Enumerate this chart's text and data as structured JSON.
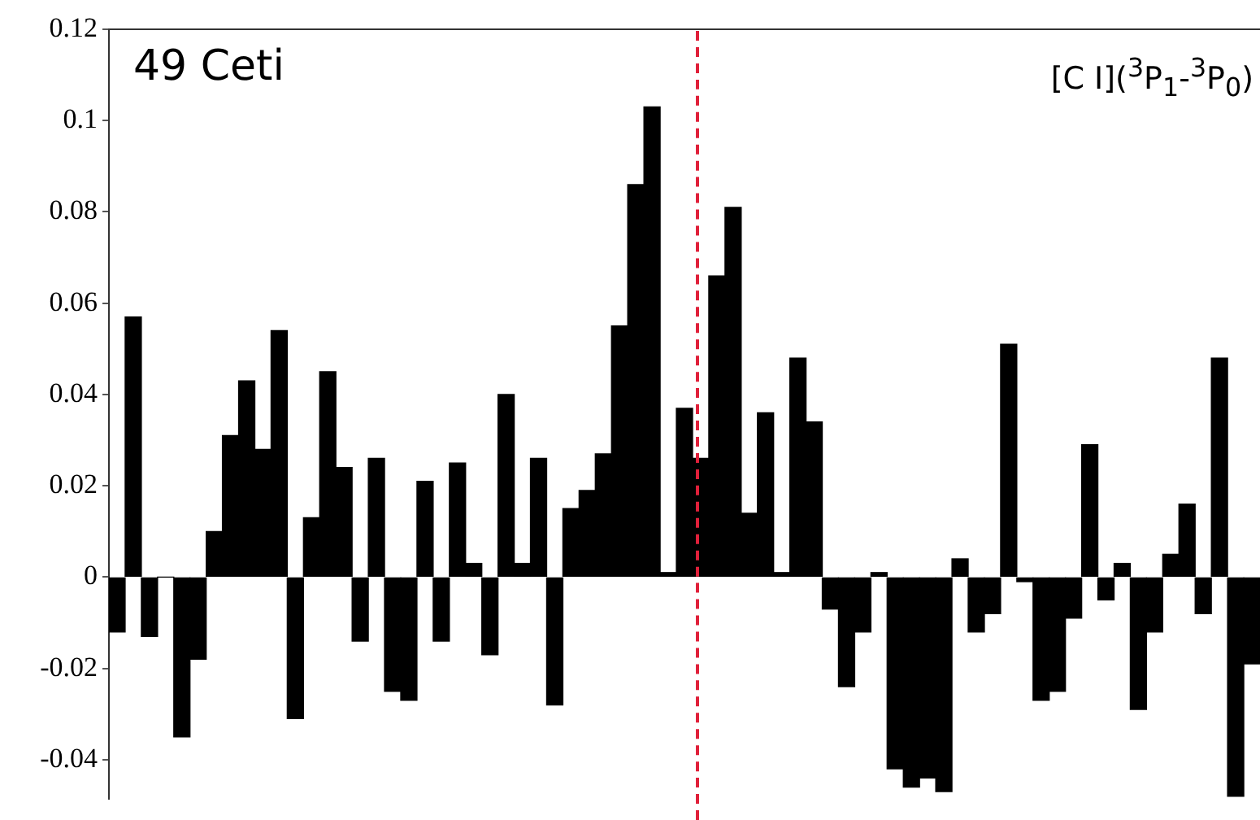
{
  "chart_data": {
    "type": "bar",
    "categories": [
      null,
      null,
      null,
      null,
      null,
      null,
      null,
      null,
      null,
      null,
      null,
      null,
      null,
      null,
      null,
      null,
      null,
      null,
      null,
      null,
      null,
      null,
      null,
      null,
      null,
      null,
      null,
      null,
      null,
      null,
      null,
      null,
      null,
      null,
      null,
      null,
      null,
      null,
      null,
      null,
      null,
      null,
      null,
      null,
      null,
      null,
      null,
      null,
      null,
      null,
      null,
      null,
      null,
      null,
      null,
      null,
      null,
      null,
      null,
      null,
      null,
      null,
      null,
      null,
      null,
      null,
      null,
      null,
      null,
      null,
      null
    ],
    "values": [
      -0.012,
      0.057,
      -0.013,
      0,
      -0.035,
      -0.018,
      0.01,
      0.031,
      0.043,
      0.028,
      0.054,
      -0.031,
      0.013,
      0.045,
      0.024,
      -0.014,
      0.026,
      -0.025,
      -0.027,
      0.021,
      -0.014,
      0.025,
      0.003,
      -0.017,
      0.04,
      0.003,
      0.026,
      -0.028,
      0.015,
      0.019,
      0.027,
      0.055,
      0.086,
      0.103,
      0.001,
      0.037,
      0.026,
      0.066,
      0.081,
      0.014,
      0.036,
      0.001,
      0.048,
      0.034,
      -0.007,
      -0.024,
      -0.012,
      0.001,
      -0.042,
      -0.046,
      -0.044,
      -0.047,
      0.004,
      -0.012,
      -0.008,
      0.051,
      -0.001,
      -0.027,
      -0.025,
      -0.009,
      0.029,
      -0.005,
      0.003,
      -0.029,
      -0.012,
      0.005,
      0.016,
      -0.008,
      0.048,
      -0.048,
      -0.019
    ],
    "color": "#000000",
    "ylim": [
      -0.0485,
      0.12
    ],
    "yticks": [
      -0.04,
      -0.02,
      0,
      0.02,
      0.04,
      0.06,
      0.08,
      0.1,
      0.12
    ],
    "tick_labels": "y",
    "grid": false,
    "legend": false,
    "annotations": [
      "49 Ceti",
      "[C I]($^{3}$P$_{1}$-$^{3}$P$_{0}$)"
    ]
  }
}
